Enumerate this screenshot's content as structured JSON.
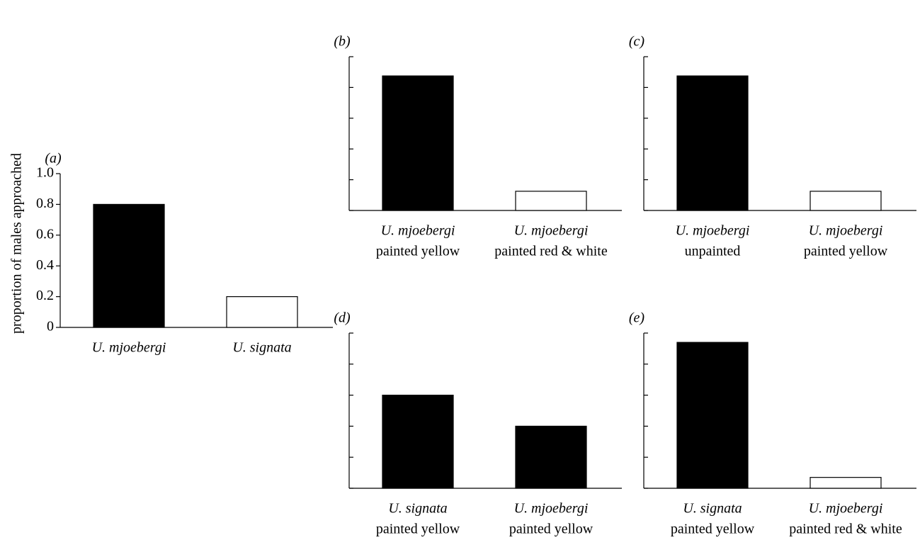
{
  "chart_data": [
    {
      "type": "bar",
      "panel_label": "(a)",
      "y_label": "proportion of males approached",
      "categories": [
        [
          "U. mjoebergi"
        ],
        [
          "U. signata"
        ]
      ],
      "values": [
        0.8,
        0.2
      ],
      "colors": [
        "#000000",
        "#ffffff"
      ],
      "ylim": [
        0,
        1
      ],
      "yticks": [
        0,
        0.2,
        0.4,
        0.6,
        0.8,
        {
          "value": 1,
          "label": "1.0"
        }
      ],
      "show_tick_labels": true
    },
    {
      "type": "bar",
      "panel_label": "(b)",
      "categories": [
        [
          "U. mjoebergi",
          "painted yellow"
        ],
        [
          "U. mjoebergi",
          "painted red & white"
        ]
      ],
      "values": [
        0.875,
        0.125
      ],
      "colors": [
        "#000000",
        "#ffffff"
      ],
      "ylim": [
        0,
        1
      ],
      "yticks": [
        0,
        0.2,
        0.4,
        0.6,
        0.8,
        1
      ],
      "show_tick_labels": false
    },
    {
      "type": "bar",
      "panel_label": "(c)",
      "categories": [
        [
          "U. mjoebergi",
          "unpainted"
        ],
        [
          "U. mjoebergi",
          "painted yellow"
        ]
      ],
      "values": [
        0.875,
        0.125
      ],
      "colors": [
        "#000000",
        "#ffffff"
      ],
      "ylim": [
        0,
        1
      ],
      "yticks": [
        0,
        0.2,
        0.4,
        0.6,
        0.8,
        1
      ],
      "show_tick_labels": false
    },
    {
      "type": "bar",
      "panel_label": "(d)",
      "categories": [
        [
          "U. signata",
          "painted yellow"
        ],
        [
          "U. mjoebergi",
          "painted yellow"
        ]
      ],
      "values": [
        0.6,
        0.4
      ],
      "colors": [
        "#000000",
        "#000000"
      ],
      "ylim": [
        0,
        1
      ],
      "yticks": [
        0,
        0.2,
        0.4,
        0.6,
        0.8,
        1
      ],
      "show_tick_labels": false
    },
    {
      "type": "bar",
      "panel_label": "(e)",
      "categories": [
        [
          "U. signata",
          "painted yellow"
        ],
        [
          "U. mjoebergi",
          "painted red & white"
        ]
      ],
      "values": [
        0.94,
        0.07
      ],
      "colors": [
        "#000000",
        "#ffffff"
      ],
      "ylim": [
        0,
        1
      ],
      "yticks": [
        0,
        0.2,
        0.4,
        0.6,
        0.8,
        1
      ],
      "show_tick_labels": false
    }
  ]
}
